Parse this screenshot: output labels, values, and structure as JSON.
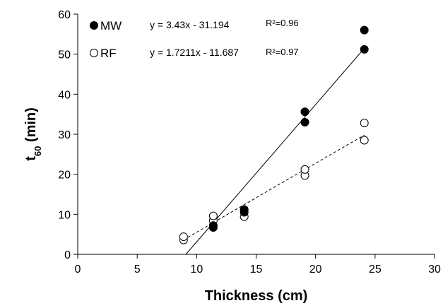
{
  "chart_data": {
    "type": "scatter",
    "xlabel": "Thickness (cm)",
    "ylabel": {
      "base": "t",
      "sub": "60",
      "rest": " (min)"
    },
    "xlim": [
      0,
      30
    ],
    "ylim": [
      0,
      60
    ],
    "x_ticks": [
      "0",
      "5",
      "10",
      "15",
      "20",
      "25",
      "30"
    ],
    "y_ticks": [
      "0",
      "10",
      "20",
      "30",
      "40",
      "50",
      "60"
    ],
    "grid": false,
    "legend_position": "top-left",
    "series": [
      {
        "name": "MW",
        "marker": "filled-circle",
        "color": "#000000",
        "points": [
          {
            "x": 11.4,
            "y": 6.7
          },
          {
            "x": 11.4,
            "y": 7.2
          },
          {
            "x": 14.0,
            "y": 10.5
          },
          {
            "x": 14.0,
            "y": 11.0
          },
          {
            "x": 19.1,
            "y": 33.0
          },
          {
            "x": 19.1,
            "y": 35.6
          },
          {
            "x": 24.1,
            "y": 51.2
          },
          {
            "x": 24.1,
            "y": 56.0
          }
        ],
        "fit": {
          "slope": 3.43,
          "intercept": -31.194,
          "equation": "y = 3.43x - 31.194",
          "r2": "R²=0.96",
          "line_style": "solid"
        }
      },
      {
        "name": "RF",
        "marker": "open-circle",
        "color": "#000000",
        "points": [
          {
            "x": 8.9,
            "y": 3.6
          },
          {
            "x": 8.9,
            "y": 4.4
          },
          {
            "x": 11.4,
            "y": 8.4
          },
          {
            "x": 11.4,
            "y": 9.6
          },
          {
            "x": 14.0,
            "y": 9.4
          },
          {
            "x": 14.0,
            "y": 11.2
          },
          {
            "x": 19.1,
            "y": 19.7
          },
          {
            "x": 19.1,
            "y": 21.2
          },
          {
            "x": 24.1,
            "y": 28.5
          },
          {
            "x": 24.1,
            "y": 32.8
          }
        ],
        "fit": {
          "slope": 1.7211,
          "intercept": -11.687,
          "equation": "y = 1.7211x - 11.687",
          "r2": "R²=0.97",
          "line_style": "dashed"
        }
      }
    ]
  }
}
